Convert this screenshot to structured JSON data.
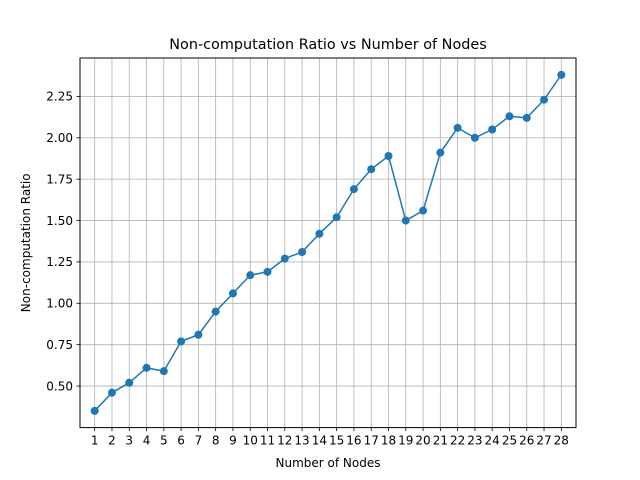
{
  "chart_data": {
    "type": "line",
    "title": "Non-computation Ratio vs Number of Nodes",
    "xlabel": "Number of Nodes",
    "ylabel": "Non-computation Ratio",
    "x": [
      1,
      2,
      3,
      4,
      5,
      6,
      7,
      8,
      9,
      10,
      11,
      12,
      13,
      14,
      15,
      16,
      17,
      18,
      19,
      20,
      21,
      22,
      23,
      24,
      25,
      26,
      27,
      28
    ],
    "x_tick_labels": [
      "1",
      "2",
      "3",
      "4",
      "5",
      "6",
      "7",
      "8",
      "9",
      "10",
      "11",
      "12",
      "13",
      "14",
      "15",
      "16",
      "17",
      "18",
      "19",
      "20",
      "21",
      "22",
      "23",
      "24",
      "25",
      "26",
      "27",
      "28"
    ],
    "series": [
      {
        "values": [
          0.35,
          0.46,
          0.52,
          0.61,
          0.59,
          0.77,
          0.81,
          0.95,
          1.06,
          1.17,
          1.19,
          1.27,
          1.31,
          1.42,
          1.52,
          1.69,
          1.81,
          1.89,
          1.5,
          1.56,
          1.91,
          2.06,
          2.0,
          2.05,
          2.13,
          2.12,
          2.23,
          2.38
        ],
        "color": "#1f77b4",
        "marker": "circle"
      }
    ],
    "y_ticks": [
      0.5,
      0.75,
      1.0,
      1.25,
      1.5,
      1.75,
      2.0,
      2.25
    ],
    "y_tick_labels": [
      "0.50",
      "0.75",
      "1.00",
      "1.25",
      "1.50",
      "1.75",
      "2.00",
      "2.25"
    ],
    "xlim": [
      0.15,
      28.85
    ],
    "ylim": [
      0.249,
      2.482
    ],
    "grid": true
  }
}
